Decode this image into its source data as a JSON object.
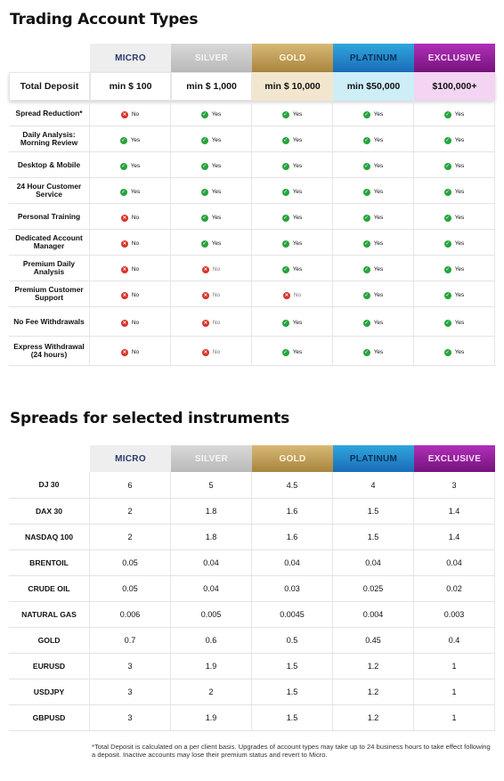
{
  "account_types": {
    "title": "Trading Account Types",
    "tiers": [
      "MICRO",
      "SILVER",
      "GOLD",
      "PLATINUM",
      "EXCLUSIVE"
    ],
    "deposit_label": "Total Deposit",
    "deposits": [
      "min $ 100",
      "min $ 1,000",
      "min $ 10,000",
      "min $50,000",
      "$100,000+"
    ],
    "yes_label": "Yes",
    "no_label": "No",
    "features": [
      {
        "label": "Spread Reduction*",
        "values": [
          false,
          true,
          true,
          true,
          true
        ]
      },
      {
        "label": "Daily Analysis: Morning Review",
        "values": [
          true,
          true,
          true,
          true,
          true
        ]
      },
      {
        "label": "Desktop & Mobile",
        "values": [
          true,
          true,
          true,
          true,
          true
        ]
      },
      {
        "label": "24 Hour Customer Service",
        "values": [
          true,
          true,
          true,
          true,
          true
        ]
      },
      {
        "label": "Personal Training",
        "values": [
          false,
          true,
          true,
          true,
          true
        ]
      },
      {
        "label": "Dedicated Account Manager",
        "values": [
          false,
          true,
          true,
          true,
          true
        ]
      },
      {
        "label": "Premium Daily Analysis",
        "values": [
          false,
          false,
          true,
          true,
          true
        ]
      },
      {
        "label": "Premium Customer Support",
        "values": [
          false,
          false,
          false,
          true,
          true
        ]
      },
      {
        "label": "No Fee Withdrawals",
        "values": [
          false,
          false,
          true,
          true,
          true
        ]
      },
      {
        "label": "Express Withdrawal (24 hours)",
        "values": [
          false,
          false,
          true,
          true,
          true
        ]
      }
    ]
  },
  "spreads": {
    "title": "Spreads for selected instruments",
    "tiers": [
      "MICRO",
      "SILVER",
      "GOLD",
      "PLATINUM",
      "EXCLUSIVE"
    ],
    "rows": [
      {
        "instrument": "DJ 30",
        "values": [
          "6",
          "5",
          "4.5",
          "4",
          "3"
        ]
      },
      {
        "instrument": "DAX 30",
        "values": [
          "2",
          "1.8",
          "1.6",
          "1.5",
          "1.4"
        ]
      },
      {
        "instrument": "NASDAQ 100",
        "values": [
          "2",
          "1.8",
          "1.6",
          "1.5",
          "1.4"
        ]
      },
      {
        "instrument": "BRENTOIL",
        "values": [
          "0.05",
          "0.04",
          "0.04",
          "0.04",
          "0.04"
        ]
      },
      {
        "instrument": "CRUDE OIL",
        "values": [
          "0.05",
          "0.04",
          "0.03",
          "0.025",
          "0.02"
        ]
      },
      {
        "instrument": "NATURAL GAS",
        "values": [
          "0.006",
          "0.005",
          "0.0045",
          "0.004",
          "0.003"
        ]
      },
      {
        "instrument": "GOLD",
        "values": [
          "0.7",
          "0.6",
          "0.5",
          "0.45",
          "0.4"
        ]
      },
      {
        "instrument": "EURUSD",
        "values": [
          "3",
          "1.9",
          "1.5",
          "1.2",
          "1"
        ]
      },
      {
        "instrument": "USDJPY",
        "values": [
          "3",
          "2",
          "1.5",
          "1.2",
          "1"
        ]
      },
      {
        "instrument": "GBPUSD",
        "values": [
          "3",
          "1.9",
          "1.5",
          "1.2",
          "1"
        ]
      }
    ]
  },
  "footnote": "*Total Deposit is calculated on a per client basis. Upgrades of account types may take up to 24 business hours to take effect following a deposit. Inactive accounts may lose their premium status and revert to Micro.",
  "colors": {
    "micro": "#eeeeef",
    "silver": "#c4c4c4",
    "gold": "#c4a25a",
    "platinum": "#2589cc",
    "exclusive": "#96209c",
    "yes": "#27a33d",
    "no": "#d6332a"
  }
}
